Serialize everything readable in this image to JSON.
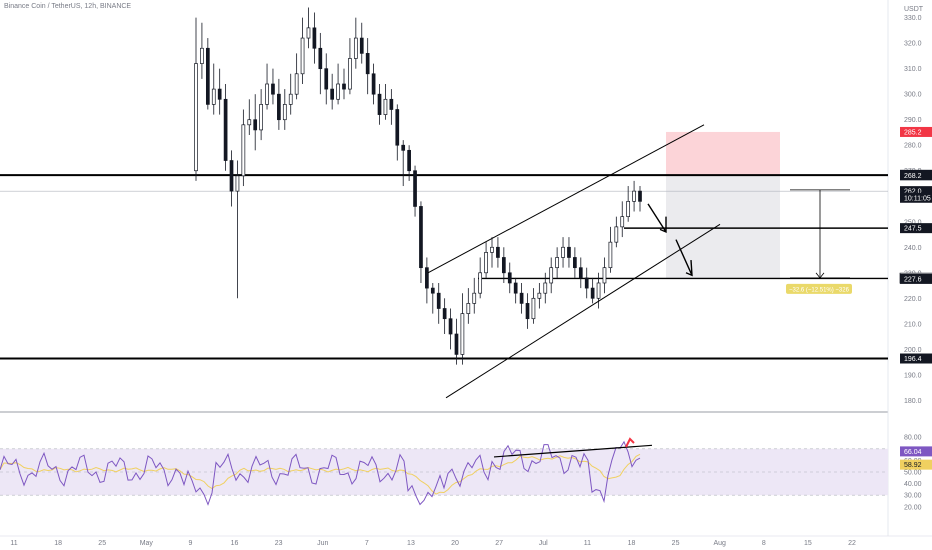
{
  "header": {
    "symbol_line": "Binance Coin / TetherUS, 12h, BINANCE"
  },
  "colors": {
    "up": "#131722",
    "down": "#131722",
    "rsi_line": "#7e57c2",
    "rsi_ma": "#f0d060",
    "rsi_band": "#ede7f6",
    "short_zone": "#fcd4d8",
    "target_zone": "#ebebee",
    "stop_tag": "#f23645",
    "measure_tag": "#ead96a"
  },
  "chart_data": {
    "type": "candlestick",
    "title": "Binance Coin / TetherUS, 12h, BINANCE",
    "price_axis": {
      "unit": "USDT",
      "range": [
        177,
        333
      ],
      "ticks": [
        330,
        320,
        310,
        300,
        290,
        280,
        270,
        260,
        250,
        240,
        230,
        220,
        210,
        200,
        190,
        180
      ]
    },
    "time_axis": {
      "ticks": [
        "11",
        "18",
        "25",
        "May",
        "9",
        "16",
        "23",
        "Jun",
        "7",
        "13",
        "20",
        "27",
        "Jul",
        "11",
        "18",
        "25",
        "Aug",
        "8",
        "15",
        "22"
      ]
    },
    "candles": [
      [
        270,
        312,
        330,
        266
      ],
      [
        312,
        318,
        328,
        306
      ],
      [
        318,
        296,
        322,
        294
      ],
      [
        296,
        302,
        312,
        292
      ],
      [
        302,
        298,
        310,
        292
      ],
      [
        298,
        274,
        304,
        270
      ],
      [
        274,
        262,
        278,
        256
      ],
      [
        262,
        268,
        274,
        220
      ],
      [
        268,
        288,
        294,
        264
      ],
      [
        288,
        290,
        298,
        284
      ],
      [
        290,
        286,
        300,
        278
      ],
      [
        286,
        296,
        302,
        282
      ],
      [
        296,
        304,
        312,
        294
      ],
      [
        304,
        300,
        310,
        296
      ],
      [
        300,
        290,
        306,
        286
      ],
      [
        290,
        296,
        302,
        286
      ],
      [
        296,
        300,
        308,
        292
      ],
      [
        300,
        308,
        316,
        298
      ],
      [
        308,
        322,
        330,
        304
      ],
      [
        322,
        326,
        334,
        318
      ],
      [
        326,
        318,
        332,
        312
      ],
      [
        318,
        310,
        324,
        300
      ],
      [
        310,
        302,
        316,
        296
      ],
      [
        302,
        298,
        308,
        294
      ],
      [
        298,
        304,
        312,
        296
      ],
      [
        304,
        302,
        310,
        298
      ],
      [
        302,
        314,
        322,
        300
      ],
      [
        314,
        322,
        330,
        310
      ],
      [
        322,
        316,
        328,
        312
      ],
      [
        316,
        308,
        322,
        300
      ],
      [
        308,
        300,
        312,
        296
      ],
      [
        300,
        292,
        304,
        288
      ],
      [
        292,
        298,
        304,
        290
      ],
      [
        298,
        294,
        302,
        288
      ],
      [
        294,
        280,
        296,
        274
      ],
      [
        280,
        278,
        282,
        264
      ],
      [
        278,
        270,
        280,
        266
      ],
      [
        270,
        256,
        272,
        252
      ],
      [
        256,
        232,
        258,
        226
      ],
      [
        232,
        224,
        236,
        218
      ],
      [
        224,
        222,
        226,
        214
      ],
      [
        222,
        216,
        226,
        210
      ],
      [
        216,
        212,
        220,
        206
      ],
      [
        212,
        206,
        216,
        200
      ],
      [
        206,
        198,
        212,
        194
      ],
      [
        198,
        214,
        222,
        194
      ],
      [
        214,
        218,
        224,
        210
      ],
      [
        218,
        222,
        228,
        214
      ],
      [
        222,
        230,
        236,
        220
      ],
      [
        230,
        238,
        242,
        228
      ],
      [
        238,
        240,
        244,
        232
      ],
      [
        240,
        236,
        244,
        232
      ],
      [
        236,
        230,
        240,
        226
      ],
      [
        230,
        226,
        234,
        222
      ],
      [
        226,
        222,
        228,
        218
      ],
      [
        222,
        218,
        226,
        214
      ],
      [
        218,
        212,
        222,
        208
      ],
      [
        212,
        220,
        224,
        210
      ],
      [
        220,
        222,
        226,
        216
      ],
      [
        222,
        226,
        230,
        218
      ],
      [
        226,
        232,
        236,
        222
      ],
      [
        232,
        236,
        240,
        228
      ],
      [
        236,
        240,
        244,
        232
      ],
      [
        240,
        236,
        244,
        232
      ],
      [
        236,
        232,
        240,
        228
      ],
      [
        232,
        228,
        236,
        224
      ],
      [
        228,
        224,
        232,
        220
      ],
      [
        224,
        220,
        228,
        218
      ],
      [
        220,
        226,
        230,
        216
      ],
      [
        226,
        232,
        236,
        222
      ],
      [
        232,
        242,
        248,
        230
      ],
      [
        242,
        248,
        252,
        240
      ],
      [
        248,
        252,
        258,
        244
      ],
      [
        252,
        258,
        264,
        250
      ],
      [
        258,
        262,
        266,
        254
      ],
      [
        262,
        258,
        264,
        254
      ]
    ],
    "horizontal_levels": [
      268.4,
      268.2,
      262.0,
      247.5,
      227.9,
      227.6,
      196.4
    ],
    "price_tags": [
      {
        "label": "285.2",
        "value": 285.2,
        "style": "stop"
      },
      {
        "label": "268.4",
        "value": 268.4,
        "style": "dark"
      },
      {
        "label": "268.2",
        "value": 268.2,
        "style": "dark"
      },
      {
        "label": "262.0",
        "value": 262.0,
        "style": "dark"
      },
      {
        "label": "10:11:05",
        "value": 259.4,
        "style": "dark"
      },
      {
        "label": "247.5",
        "value": 247.5,
        "style": "dark"
      },
      {
        "label": "227.9",
        "value": 227.9,
        "style": "light"
      },
      {
        "label": "227.6",
        "value": 227.6,
        "style": "dark"
      },
      {
        "label": "196.4",
        "value": 196.4,
        "style": "dark"
      }
    ],
    "position": {
      "entry": 268.2,
      "stop": 285.2,
      "target": 227.9
    },
    "measure_label": "−32.6 (−12.51%) −326",
    "rsi": {
      "range": [
        0,
        100
      ],
      "ticks": [
        80.0,
        70.0,
        60.0,
        50.0,
        40.0,
        30.0,
        20.0
      ],
      "band": [
        30,
        70
      ],
      "last": 66.04,
      "ma_last": 58.92,
      "tag_labels": [
        "66.04",
        "58.92"
      ]
    }
  }
}
